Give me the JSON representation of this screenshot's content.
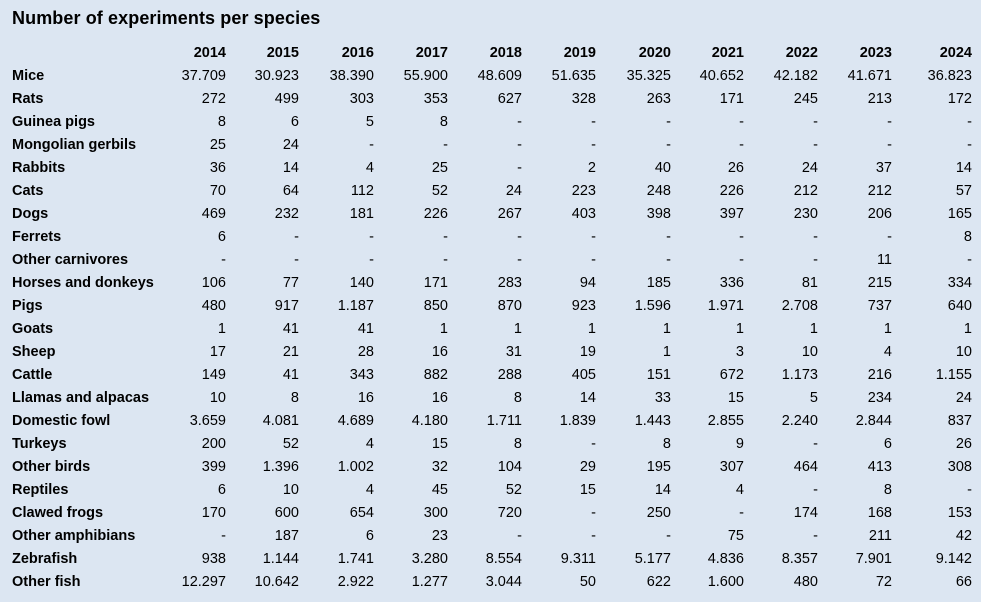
{
  "title": "Number of experiments per species",
  "chart_data": {
    "type": "table",
    "title": "Number of experiments per species",
    "years": [
      "2014",
      "2015",
      "2016",
      "2017",
      "2018",
      "2019",
      "2020",
      "2021",
      "2022",
      "2023",
      "2024"
    ],
    "rows": [
      {
        "species": "Mice",
        "values": [
          "37.709",
          "30.923",
          "38.390",
          "55.900",
          "48.609",
          "51.635",
          "35.325",
          "40.652",
          "42.182",
          "41.671",
          "36.823"
        ]
      },
      {
        "species": "Rats",
        "values": [
          "272",
          "499",
          "303",
          "353",
          "627",
          "328",
          "263",
          "171",
          "245",
          "213",
          "172"
        ]
      },
      {
        "species": "Guinea pigs",
        "values": [
          "8",
          "6",
          "5",
          "8",
          "-",
          "-",
          "-",
          "-",
          "-",
          "-",
          "-"
        ]
      },
      {
        "species": "Mongolian gerbils",
        "values": [
          "25",
          "24",
          "-",
          "-",
          "-",
          "-",
          "-",
          "-",
          "-",
          "-",
          "-"
        ]
      },
      {
        "species": "Rabbits",
        "values": [
          "36",
          "14",
          "4",
          "25",
          "-",
          "2",
          "40",
          "26",
          "24",
          "37",
          "14"
        ]
      },
      {
        "species": "Cats",
        "values": [
          "70",
          "64",
          "112",
          "52",
          "24",
          "223",
          "248",
          "226",
          "212",
          "212",
          "57"
        ]
      },
      {
        "species": "Dogs",
        "values": [
          "469",
          "232",
          "181",
          "226",
          "267",
          "403",
          "398",
          "397",
          "230",
          "206",
          "165"
        ]
      },
      {
        "species": "Ferrets",
        "values": [
          "6",
          "-",
          "-",
          "-",
          "-",
          "-",
          "-",
          "-",
          "-",
          "-",
          "8"
        ]
      },
      {
        "species": "Other carnivores",
        "values": [
          "-",
          "-",
          "-",
          "-",
          "-",
          "-",
          "-",
          "-",
          "-",
          "11",
          "-"
        ]
      },
      {
        "species": "Horses and donkeys",
        "values": [
          "106",
          "77",
          "140",
          "171",
          "283",
          "94",
          "185",
          "336",
          "81",
          "215",
          "334"
        ]
      },
      {
        "species": "Pigs",
        "values": [
          "480",
          "917",
          "1.187",
          "850",
          "870",
          "923",
          "1.596",
          "1.971",
          "2.708",
          "737",
          "640"
        ]
      },
      {
        "species": "Goats",
        "values": [
          "1",
          "41",
          "41",
          "1",
          "1",
          "1",
          "1",
          "1",
          "1",
          "1",
          "1"
        ]
      },
      {
        "species": "Sheep",
        "values": [
          "17",
          "21",
          "28",
          "16",
          "31",
          "19",
          "1",
          "3",
          "10",
          "4",
          "10"
        ]
      },
      {
        "species": "Cattle",
        "values": [
          "149",
          "41",
          "343",
          "882",
          "288",
          "405",
          "151",
          "672",
          "1.173",
          "216",
          "1.155"
        ]
      },
      {
        "species": "Llamas and alpacas",
        "values": [
          "10",
          "8",
          "16",
          "16",
          "8",
          "14",
          "33",
          "15",
          "5",
          "234",
          "24"
        ]
      },
      {
        "species": "Domestic fowl",
        "values": [
          "3.659",
          "4.081",
          "4.689",
          "4.180",
          "1.711",
          "1.839",
          "1.443",
          "2.855",
          "2.240",
          "2.844",
          "837"
        ]
      },
      {
        "species": "Turkeys",
        "values": [
          "200",
          "52",
          "4",
          "15",
          "8",
          "-",
          "8",
          "9",
          "-",
          "6",
          "26"
        ]
      },
      {
        "species": "Other birds",
        "values": [
          "399",
          "1.396",
          "1.002",
          "32",
          "104",
          "29",
          "195",
          "307",
          "464",
          "413",
          "308"
        ]
      },
      {
        "species": "Reptiles",
        "values": [
          "6",
          "10",
          "4",
          "45",
          "52",
          "15",
          "14",
          "4",
          "-",
          "8",
          "-"
        ]
      },
      {
        "species": "Clawed frogs",
        "values": [
          "170",
          "600",
          "654",
          "300",
          "720",
          "-",
          "250",
          "-",
          "174",
          "168",
          "153"
        ]
      },
      {
        "species": "Other amphibians",
        "values": [
          "-",
          "187",
          "6",
          "23",
          "-",
          "-",
          "-",
          "75",
          "-",
          "211",
          "42"
        ]
      },
      {
        "species": "Zebrafish",
        "values": [
          "938",
          "1.144",
          "1.741",
          "3.280",
          "8.554",
          "9.311",
          "5.177",
          "4.836",
          "8.357",
          "7.901",
          "9.142"
        ]
      },
      {
        "species": "Other fish",
        "values": [
          "12.297",
          "10.642",
          "2.922",
          "1.277",
          "3.044",
          "50",
          "622",
          "1.600",
          "480",
          "72",
          "66"
        ]
      }
    ]
  }
}
